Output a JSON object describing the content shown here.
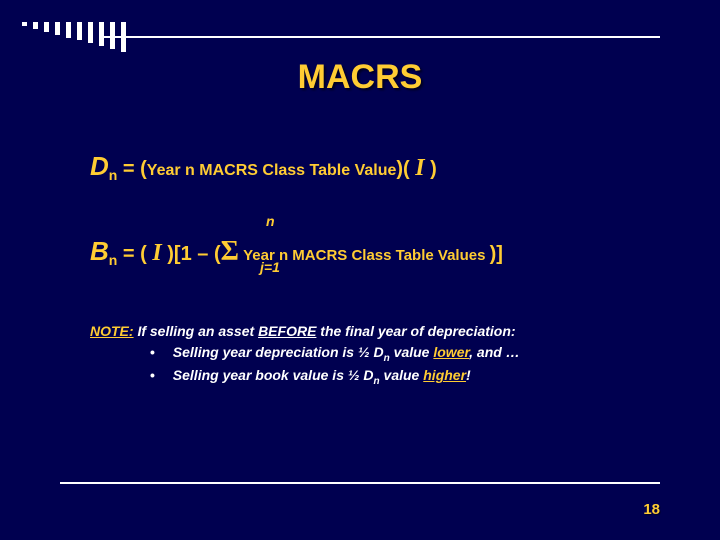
{
  "slide": {
    "title": "MACRS",
    "page_number": "18",
    "bars": {
      "count": 10,
      "min_h": 4,
      "max_h": 30
    }
  },
  "formula1": {
    "lhs_var": "D",
    "lhs_sub": "n",
    "eq": " = (",
    "mid_text": "Year n MACRS Class Table Value",
    "after1": ")( ",
    "ivar": "I",
    "after2": " )"
  },
  "formula2": {
    "lhs_var": "B",
    "lhs_sub": "n",
    "eq": " = ( ",
    "ivar": "I",
    "after_i": " )[",
    "one": "1 – (",
    "sigma": "Σ",
    "n_top": "n",
    "jeq": "j=1",
    "mid_text": " Year n MACRS Class Table Values ",
    "close": ")]"
  },
  "note": {
    "label": "NOTE:",
    "intro_a": " If selling an asset ",
    "before": "BEFORE",
    "intro_b": " the final year of depreciation:",
    "b1_a": "Selling year depreciation is ½ D",
    "b1_sub": "n",
    "b1_b": " value ",
    "b1_kw": "lower",
    "b1_c": ", and …",
    "b2_a": "Selling year book value is ½ D",
    "b2_sub": "n",
    "b2_b": " value ",
    "b2_kw": "higher",
    "b2_c": "!"
  },
  "colors": {
    "bg": "#000050",
    "accent": "#ffcc33",
    "text": "#ffffff"
  }
}
